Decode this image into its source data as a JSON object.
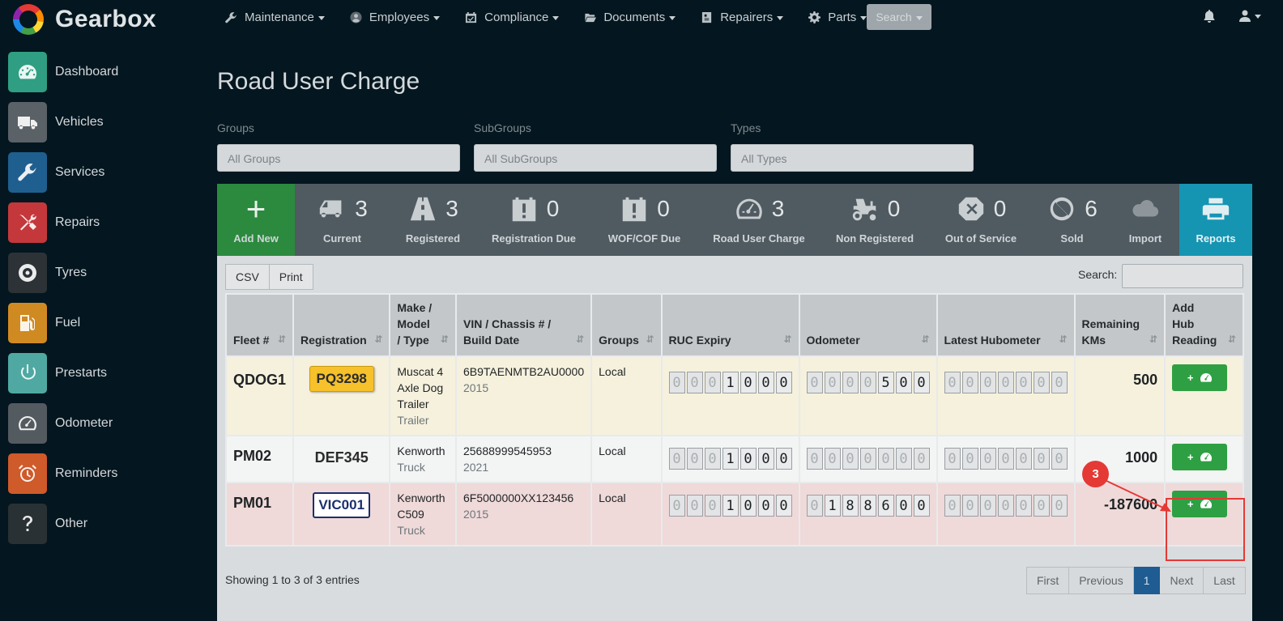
{
  "app": {
    "name": "Gearbox"
  },
  "topnav": {
    "items": [
      {
        "label": "Maintenance",
        "icon": "wrench-icon"
      },
      {
        "label": "Employees",
        "icon": "user-circle-icon"
      },
      {
        "label": "Compliance",
        "icon": "calendar-check-icon"
      },
      {
        "label": "Documents",
        "icon": "folder-open-icon"
      },
      {
        "label": "Repairers",
        "icon": "id-card-icon"
      },
      {
        "label": "Parts",
        "icon": "gear-icon"
      }
    ],
    "search_label": "Search"
  },
  "sidebar": {
    "items": [
      {
        "label": "Dashboard",
        "icon": "dashboard-gauge-icon",
        "color": "#2f9e82"
      },
      {
        "label": "Vehicles",
        "icon": "truck-icon",
        "color": "#5a6167"
      },
      {
        "label": "Services",
        "icon": "wrench-icon",
        "color": "#1f5f8f"
      },
      {
        "label": "Repairs",
        "icon": "tools-icon",
        "color": "#c4383b"
      },
      {
        "label": "Tyres",
        "icon": "tyre-icon",
        "color": "#2c3236"
      },
      {
        "label": "Fuel",
        "icon": "fuel-pump-icon",
        "color": "#d08a22"
      },
      {
        "label": "Prestarts",
        "icon": "power-icon",
        "color": "#4fa9a2"
      },
      {
        "label": "Odometer",
        "icon": "odometer-icon",
        "color": "#545b60"
      },
      {
        "label": "Reminders",
        "icon": "alarm-clock-icon",
        "color": "#cf5a2a"
      },
      {
        "label": "Other",
        "icon": "question-icon",
        "color": "#2a3135"
      }
    ]
  },
  "page": {
    "title": "Road User Charge"
  },
  "filters": [
    {
      "label": "Groups",
      "value": "All Groups"
    },
    {
      "label": "SubGroups",
      "value": "All SubGroups"
    },
    {
      "label": "Types",
      "value": "All Types"
    }
  ],
  "stats": {
    "add_new": {
      "label": "Add New",
      "symbol": "+"
    },
    "items": [
      {
        "label": "Current",
        "count": "3",
        "icon": "truck-icon"
      },
      {
        "label": "Registered",
        "count": "3",
        "icon": "road-icon"
      },
      {
        "label": "Registration Due",
        "count": "0",
        "icon": "calendar-exclamation-icon"
      },
      {
        "label": "WOF/COF Due",
        "count": "0",
        "icon": "calendar-exclamation-icon"
      },
      {
        "label": "Road User Charge",
        "count": "3",
        "icon": "gauge-icon"
      },
      {
        "label": "Non Registered",
        "count": "0",
        "icon": "tractor-icon"
      },
      {
        "label": "Out of Service",
        "count": "0",
        "icon": "octagon-x-icon"
      },
      {
        "label": "Sold",
        "count": "6",
        "icon": "ban-icon"
      }
    ],
    "import": {
      "label": "Import",
      "icon": "cloud-upload-icon"
    },
    "reports": {
      "label": "Reports",
      "icon": "printer-icon"
    }
  },
  "table_tools": {
    "csv": "CSV",
    "print": "Print",
    "search_label": "Search:"
  },
  "table": {
    "headers": [
      "Fleet #",
      "Registration",
      "Make / Model / Type",
      "VIN / Chassis # / Build Date",
      "Groups",
      "RUC Expiry",
      "Odometer",
      "Latest Hubometer",
      "Remaining KMs",
      "Add Hub Reading"
    ],
    "rows": [
      {
        "fleet": "QDOG1",
        "registration": "PQ3298",
        "make": "Muscat 4 Axle Dog Trailer",
        "type": "Trailer",
        "vin": "6B9TAENMTB2AU0000",
        "build": "2015",
        "group": "Local",
        "ruc_expiry": "0001000",
        "odometer": "0000500",
        "hubometer": "0000000",
        "remaining": "500",
        "add_label": "+"
      },
      {
        "fleet": "PM02",
        "registration": "DEF345",
        "make": "Kenworth",
        "type": "Truck",
        "vin": "25688999545953",
        "build": "2021",
        "group": "Local",
        "ruc_expiry": "0001000",
        "odometer": "0000000",
        "hubometer": "0000000",
        "remaining": "1000",
        "add_label": "+"
      },
      {
        "fleet": "PM01",
        "registration": "VIC001",
        "make": "Kenworth C509",
        "type": "Truck",
        "vin": "6F5000000XX123456",
        "build": "2015",
        "group": "Local",
        "ruc_expiry": "0001000",
        "odometer": "0188600",
        "hubometer": "0000000",
        "remaining": "-187600",
        "add_label": "+"
      }
    ]
  },
  "footer": {
    "showing": "Showing 1 to 3 of 3 entries",
    "pager": [
      "First",
      "Previous",
      "1",
      "Next",
      "Last"
    ]
  },
  "annotation": {
    "badge": "3"
  }
}
